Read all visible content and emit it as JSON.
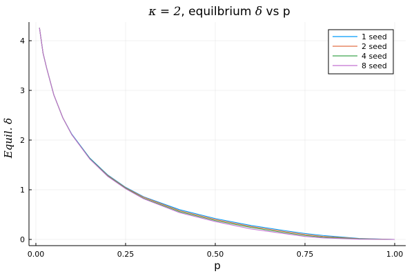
{
  "chart_data": {
    "type": "line",
    "title_parts": [
      {
        "text": "κ = 2",
        "math": true
      },
      {
        "text": ", equilbrium ",
        "math": false
      },
      {
        "text": "δ",
        "math": true
      },
      {
        "text": " vs p",
        "math": false
      }
    ],
    "xlabel": "p",
    "ylabel": "Equil. δ",
    "xlim": [
      0,
      1
    ],
    "ylim": [
      0,
      4.3
    ],
    "xticks": [
      0.0,
      0.25,
      0.5,
      0.75,
      1.0
    ],
    "xtick_labels": [
      "0.00",
      "0.25",
      "0.50",
      "0.75",
      "1.00"
    ],
    "yticks": [
      0,
      1,
      2,
      3,
      4
    ],
    "ytick_labels": [
      "0",
      "1",
      "2",
      "3",
      "4"
    ],
    "grid": true,
    "legend_position": "top-right",
    "x": [
      0.01,
      0.02,
      0.03,
      0.05,
      0.075,
      0.1,
      0.15,
      0.2,
      0.25,
      0.3,
      0.4,
      0.5,
      0.6,
      0.7,
      0.75,
      0.8,
      0.9,
      1.0
    ],
    "series": [
      {
        "name": "1 seed",
        "color": "#009af9",
        "values": [
          4.26,
          3.75,
          3.45,
          2.91,
          2.45,
          2.12,
          1.64,
          1.3,
          1.05,
          0.86,
          0.6,
          0.42,
          0.28,
          0.17,
          0.12,
          0.08,
          0.02,
          0.0
        ]
      },
      {
        "name": "2 seed",
        "color": "#e26f46",
        "values": [
          4.26,
          3.75,
          3.45,
          2.91,
          2.45,
          2.11,
          1.63,
          1.29,
          1.04,
          0.85,
          0.58,
          0.4,
          0.26,
          0.15,
          0.1,
          0.06,
          0.015,
          0.0
        ]
      },
      {
        "name": "4 seed",
        "color": "#3da44d",
        "values": [
          4.26,
          3.75,
          3.45,
          2.91,
          2.45,
          2.11,
          1.63,
          1.28,
          1.03,
          0.83,
          0.56,
          0.38,
          0.24,
          0.13,
          0.08,
          0.045,
          0.01,
          0.0
        ]
      },
      {
        "name": "8 seed",
        "color": "#c271d2",
        "values": [
          4.26,
          3.75,
          3.45,
          2.91,
          2.45,
          2.11,
          1.62,
          1.27,
          1.02,
          0.82,
          0.54,
          0.36,
          0.21,
          0.11,
          0.06,
          0.03,
          0.005,
          0.0
        ]
      }
    ]
  }
}
